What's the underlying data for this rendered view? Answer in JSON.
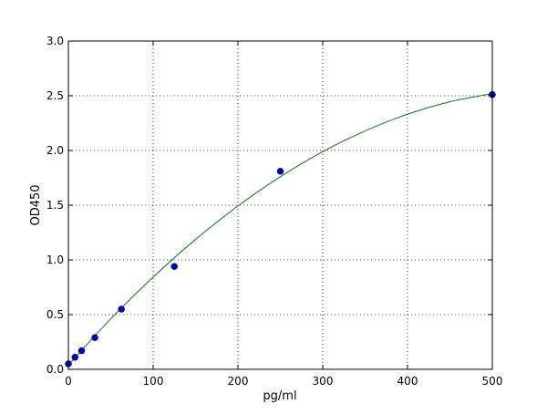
{
  "chart_data": {
    "type": "scatter",
    "title": "",
    "xlabel": "pg/ml",
    "ylabel": "OD450",
    "xlim": [
      0,
      500
    ],
    "ylim": [
      0,
      3.0
    ],
    "x_ticks": [
      "0",
      "100",
      "200",
      "300",
      "400",
      "500"
    ],
    "y_ticks": [
      "0.0",
      "0.5",
      "1.0",
      "1.5",
      "2.0",
      "2.5",
      "3.0"
    ],
    "grid": true,
    "series": [
      {
        "kind": "points",
        "color": "#0000cc",
        "x": [
          0,
          7.8,
          15.6,
          31.25,
          62.5,
          125,
          250,
          500
        ],
        "y": [
          0.05,
          0.11,
          0.17,
          0.29,
          0.55,
          0.94,
          1.81,
          2.51
        ]
      },
      {
        "kind": "fit-line",
        "color": "#008000",
        "x": [
          0,
          50,
          100,
          150,
          200,
          250,
          300,
          350,
          400,
          450,
          500
        ],
        "y": [
          0.04,
          0.461,
          0.843,
          1.187,
          1.493,
          1.76,
          1.989,
          2.179,
          2.331,
          2.445,
          2.52
        ]
      }
    ]
  }
}
